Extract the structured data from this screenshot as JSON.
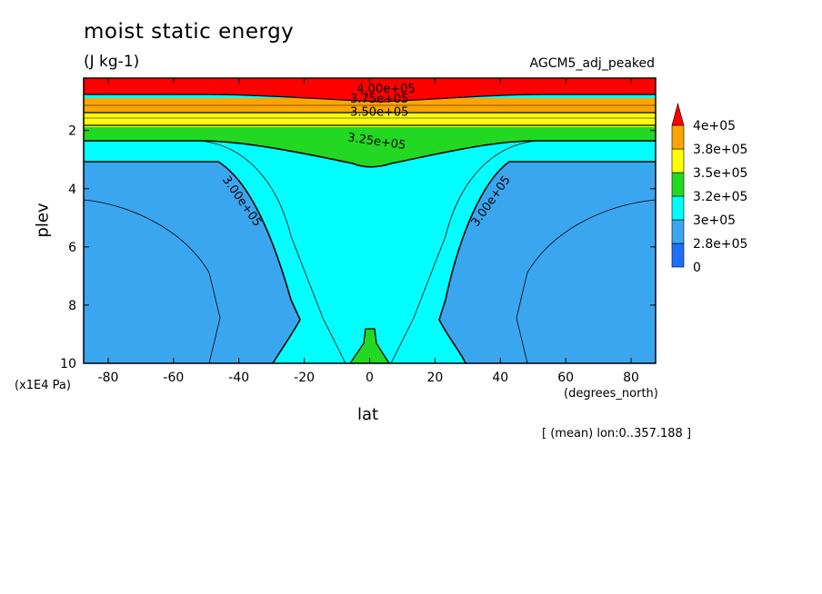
{
  "header": {
    "title": "moist static energy",
    "units": "(J kg-1)",
    "run": "AGCM5_adj_peaked"
  },
  "axes": {
    "y_label": "plev",
    "y_unit": "(x1E4 Pa)",
    "x_label": "lat",
    "x_unit": "(degrees_north)"
  },
  "footnote": "[ (mean) lon:0..357.188 ]",
  "chart_data": {
    "type": "heatmap",
    "title": "moist static energy",
    "subtitle": "(J kg-1)",
    "xlabel": "lat",
    "ylabel": "plev",
    "x_units": "(degrees_north)",
    "y_units": "(x1E4 Pa)",
    "xlim": [
      -87.5,
      87.5
    ],
    "ylim": [
      10,
      0.2
    ],
    "x_ticks": [
      -80,
      -60,
      -40,
      -20,
      0,
      20,
      40,
      60,
      80
    ],
    "x_tick_labels": [
      "-80",
      "-60",
      "-40",
      "-20",
      "0",
      "20",
      "40",
      "60",
      "80"
    ],
    "y_ticks": [
      2,
      4,
      6,
      8,
      10
    ],
    "y_tick_labels": [
      "2",
      "4",
      "6",
      "8",
      "10"
    ],
    "colorbar": {
      "labels": [
        "0",
        "2.8e+05",
        "3e+05",
        "3.2e+05",
        "3.5e+05",
        "3.8e+05",
        "4e+05"
      ],
      "colors": [
        "#1f6fff",
        "#3ba6f0",
        "#00ffff",
        "#22d822",
        "#ffff00",
        "#ffa500",
        "#ff0000"
      ],
      "extend": "max"
    },
    "contour_labels": [
      {
        "text": "4.00e+05",
        "lat": 5,
        "plev": 0.7
      },
      {
        "text": "3.75e+05",
        "lat": 3,
        "plev": 1.05
      },
      {
        "text": "3.50e+05",
        "lat": 3,
        "plev": 1.5
      },
      {
        "text": "3.25e+05",
        "lat": 2,
        "plev": 2.5
      },
      {
        "text": "3.00e+05",
        "lat": -40,
        "plev": 4.5
      },
      {
        "text": "3.00e+05",
        "lat": 38,
        "plev": 4.5
      }
    ],
    "annotation": "[ (mean) lon:0..357.188 ]",
    "run_label": "AGCM5_adj_peaked"
  }
}
